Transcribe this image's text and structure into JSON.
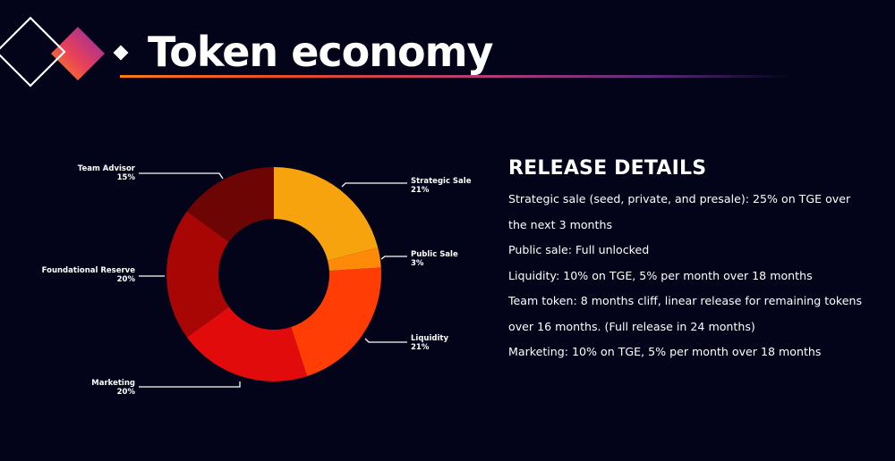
{
  "slide": {
    "title": "Token economy"
  },
  "chart_data": {
    "type": "pie",
    "variant": "donut",
    "title": "",
    "legend": "none",
    "categories": [
      "Strategic Sale",
      "Public Sale",
      "Liquidity",
      "Marketing",
      "Foundational Reserve",
      "Team Advisor"
    ],
    "values": [
      21,
      3,
      21,
      20,
      20,
      15
    ],
    "value_labels": [
      "21%",
      "3%",
      "21%",
      "20%",
      "20%",
      "15%"
    ],
    "colors": [
      "#f7a30e",
      "#ff8a0a",
      "#ff3d04",
      "#e20b0b",
      "#a80505",
      "#6e0505"
    ]
  },
  "release": {
    "heading": "RELEASE DETAILS",
    "lines": [
      "Strategic sale (seed, private, and presale): 25% on TGE over",
      "the next 3 months",
      "Public sale: Full unlocked",
      "Liquidity: 10% on TGE, 5% per month over 18 months",
      "Team token: 8 months cliff, linear release for remaining tokens",
      "over 16 months. (Full release in 24 months)",
      "Marketing: 10% on TGE, 5% per month over 18 months"
    ]
  },
  "colors": {
    "background": "#03031a",
    "text": "#ffffff",
    "accent_orange": "#ff7a1a",
    "accent_purple": "#8a2a9a"
  }
}
